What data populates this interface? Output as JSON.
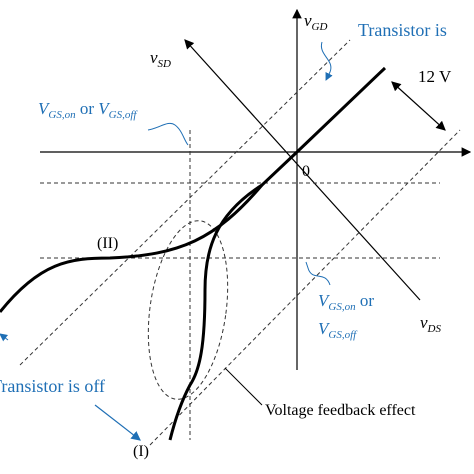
{
  "axes": {
    "gd": {
      "symbol": "v",
      "subscript": "GD"
    },
    "sd": {
      "symbol": "v",
      "subscript": "SD"
    },
    "ds": {
      "symbol": "v",
      "subscript": "DS"
    }
  },
  "origin": "0",
  "voltage_gap": "12 V",
  "transistor_on": "Transistor is",
  "transistor_off": "Transistor is off",
  "threshold_upper": {
    "v1": "V",
    "s1": "GS,on",
    "or": " or ",
    "v2": "V",
    "s2": "GS,off"
  },
  "threshold_lower": {
    "v1": "V",
    "s1": "GS,on",
    "or": " or",
    "v2": "V",
    "s2": "GS,off"
  },
  "curve_ii": "(II)",
  "curve_i": "(I)",
  "feedback": "Voltage feedback effect"
}
